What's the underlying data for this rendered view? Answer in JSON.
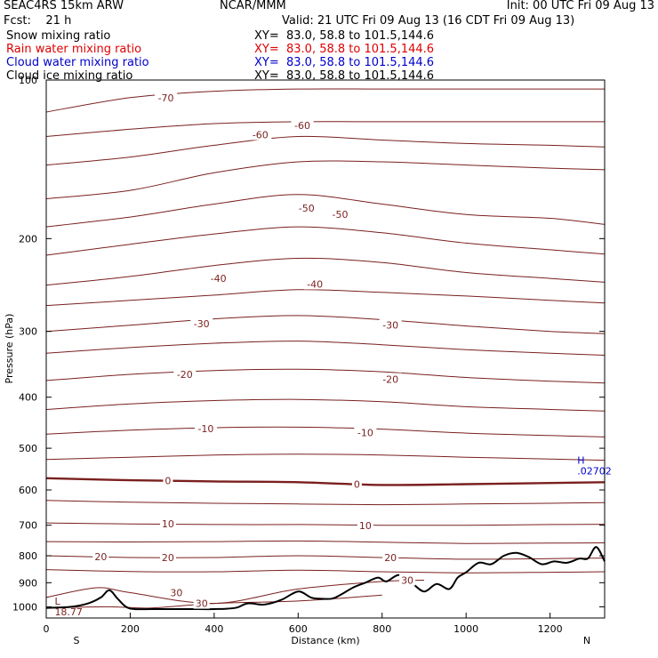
{
  "header": {
    "model": "SEAC4RS 15km ARW",
    "org": "NCAR/MMM",
    "init": "Init: 00 UTC Fri 09 Aug 13",
    "fcst": "Fcst:    21 h",
    "valid": "Valid: 21 UTC Fri 09 Aug 13 (16 CDT Fri 09 Aug 13)"
  },
  "legend": [
    {
      "label": "Snow mixing ratio",
      "xy": "XY=  83.0, 58.8 to 101.5,144.6",
      "color": "#000000"
    },
    {
      "label": "Rain water mixing ratio",
      "xy": "XY=  83.0, 58.8 to 101.5,144.6",
      "color": "#e00000"
    },
    {
      "label": "Cloud water mixing ratio",
      "xy": "XY=  83.0, 58.8 to 101.5,144.6",
      "color": "#0000cc"
    },
    {
      "label": "Cloud ice mixing ratio",
      "xy": "XY=  83.0, 58.8 to 101.5,144.6",
      "color": "#000000"
    }
  ],
  "chart_data": {
    "type": "line",
    "xlabel": "Distance (km)",
    "ylabel": "Pressure (hPa)",
    "xlim": [
      0,
      1330
    ],
    "ylim": [
      1050,
      100
    ],
    "y_scale": "log",
    "x_ticks": [
      0,
      200,
      400,
      600,
      800,
      1000,
      1200
    ],
    "y_ticks": [
      100,
      200,
      300,
      400,
      500,
      600,
      700,
      800,
      900,
      1000
    ],
    "x_end_labels": {
      "left": "S",
      "right": "N"
    },
    "contour_color": "#7a1f1f",
    "terrain_color": "#000000",
    "isotherms": [
      {
        "value": -70,
        "x": [
          0,
          200,
          400,
          600,
          800,
          1000,
          1200,
          1330
        ],
        "p": [
          115,
          108,
          105,
          104,
          104,
          104,
          104,
          104
        ]
      },
      {
        "value": -65,
        "x": [
          0,
          200,
          400,
          600,
          800,
          1000,
          1200,
          1330
        ],
        "p": [
          128,
          124,
          121,
          120,
          120,
          120,
          120,
          120
        ]
      },
      {
        "value": -60,
        "x": [
          0,
          200,
          400,
          600,
          800,
          1000,
          1200,
          1330
        ],
        "p": [
          145,
          140,
          133,
          128,
          130,
          132,
          133,
          134
        ]
      },
      {
        "value": -55,
        "x": [
          0,
          200,
          400,
          600,
          800,
          1000,
          1200,
          1330
        ],
        "p": [
          168,
          162,
          150,
          143,
          143,
          145,
          147,
          148
        ]
      },
      {
        "value": -50,
        "x": [
          0,
          200,
          400,
          600,
          800,
          1000,
          1200,
          1330
        ],
        "p": [
          190,
          182,
          172,
          165,
          172,
          180,
          183,
          188
        ]
      },
      {
        "value": -45,
        "x": [
          0,
          200,
          400,
          600,
          800,
          1000,
          1200,
          1330
        ],
        "p": [
          215,
          205,
          196,
          190,
          195,
          204,
          210,
          214
        ]
      },
      {
        "value": -40,
        "x": [
          0,
          200,
          400,
          600,
          800,
          1000,
          1200,
          1330
        ],
        "p": [
          245,
          236,
          225,
          218,
          222,
          232,
          238,
          242
        ]
      },
      {
        "value": -35,
        "x": [
          0,
          200,
          400,
          600,
          800,
          1000,
          1200,
          1330
        ],
        "p": [
          268,
          262,
          256,
          250,
          253,
          257,
          262,
          265
        ]
      },
      {
        "value": -30,
        "x": [
          0,
          200,
          400,
          600,
          800,
          1000,
          1200,
          1330
        ],
        "p": [
          300,
          292,
          284,
          280,
          285,
          293,
          300,
          303
        ]
      },
      {
        "value": -25,
        "x": [
          0,
          200,
          400,
          600,
          800,
          1000,
          1200,
          1330
        ],
        "p": [
          330,
          322,
          316,
          313,
          318,
          325,
          330,
          333
        ]
      },
      {
        "value": -20,
        "x": [
          0,
          200,
          400,
          600,
          800,
          1000,
          1200,
          1330
        ],
        "p": [
          372,
          362,
          356,
          354,
          358,
          367,
          373,
          376
        ]
      },
      {
        "value": -15,
        "x": [
          0,
          200,
          400,
          600,
          800,
          1000,
          1200,
          1330
        ],
        "p": [
          422,
          412,
          406,
          404,
          408,
          417,
          422,
          425
        ]
      },
      {
        "value": -10,
        "x": [
          0,
          200,
          400,
          600,
          800,
          1000,
          1200,
          1330
        ],
        "p": [
          470,
          462,
          457,
          456,
          460,
          468,
          473,
          476
        ]
      },
      {
        "value": -5,
        "x": [
          0,
          200,
          400,
          600,
          800,
          1000,
          1200,
          1330
        ],
        "p": [
          525,
          520,
          515,
          513,
          515,
          520,
          524,
          527
        ]
      },
      {
        "value": 0,
        "x": [
          0,
          200,
          400,
          600,
          800,
          1000,
          1200,
          1330
        ],
        "p": [
          570,
          575,
          578,
          580,
          587,
          585,
          582,
          580
        ]
      },
      {
        "value": 5,
        "x": [
          0,
          200,
          400,
          600,
          800,
          1000,
          1200,
          1330
        ],
        "p": [
          628,
          633,
          636,
          638,
          640,
          638,
          636,
          634
        ]
      },
      {
        "value": 10,
        "x": [
          0,
          200,
          400,
          600,
          800,
          1000,
          1200,
          1330
        ],
        "p": [
          693,
          696,
          698,
          698,
          700,
          700,
          698,
          697
        ]
      },
      {
        "value": 15,
        "x": [
          0,
          200,
          400,
          600,
          800,
          1000,
          1200,
          1330
        ],
        "p": [
          752,
          753,
          752,
          750,
          754,
          758,
          757,
          756
        ]
      },
      {
        "value": 20,
        "x": [
          0,
          200,
          400,
          600,
          800,
          1000,
          1200,
          1330
        ],
        "p": [
          800,
          806,
          806,
          800,
          806,
          812,
          810,
          808
        ]
      },
      {
        "value": 25,
        "x": [
          0,
          200,
          400,
          600,
          800,
          1000,
          1200,
          1330
        ],
        "p": [
          850,
          857,
          858,
          852,
          858,
          862,
          860,
          858
        ]
      },
      {
        "value": 30,
        "x": [
          0,
          120,
          200,
          400,
          600,
          800,
          900
        ],
        "p": [
          960,
          920,
          940,
          985,
          925,
          895,
          890
        ]
      },
      {
        "value": 35,
        "x": [
          0,
          150,
          250,
          400,
          600,
          800
        ],
        "p": [
          1005,
          1000,
          1005,
          985,
          975,
          950
        ]
      }
    ],
    "terrain": {
      "x": [
        0,
        60,
        100,
        130,
        150,
        170,
        190,
        210,
        250,
        300,
        350,
        400,
        450,
        480,
        520,
        560,
        600,
        630,
        650,
        680,
        700,
        730,
        760,
        790,
        810,
        840,
        870,
        900,
        930,
        960,
        980,
        1000,
        1030,
        1060,
        1090,
        1120,
        1150,
        1180,
        1210,
        1240,
        1270,
        1290,
        1310,
        1330
      ],
      "p": [
        1005,
        1000,
        985,
        960,
        930,
        965,
        1000,
        1010,
        1010,
        1010,
        1010,
        1010,
        1005,
        985,
        990,
        970,
        935,
        960,
        965,
        965,
        950,
        920,
        900,
        880,
        895,
        870,
        900,
        935,
        905,
        925,
        880,
        860,
        825,
        830,
        800,
        790,
        805,
        830,
        820,
        825,
        810,
        810,
        770,
        820
      ]
    },
    "contour_labels": [
      {
        "text": "-70",
        "x": 285,
        "p": 108
      },
      {
        "text": "-60",
        "x": 510,
        "p": 127
      },
      {
        "text": "-60",
        "x": 610,
        "p": 122
      },
      {
        "text": "-50",
        "x": 620,
        "p": 175
      },
      {
        "text": "-50",
        "x": 700,
        "p": 180
      },
      {
        "text": "-40",
        "x": 410,
        "p": 238
      },
      {
        "text": "-40",
        "x": 640,
        "p": 244
      },
      {
        "text": "-30",
        "x": 370,
        "p": 290
      },
      {
        "text": "-30",
        "x": 820,
        "p": 292
      },
      {
        "text": "-20",
        "x": 330,
        "p": 362
      },
      {
        "text": "-20",
        "x": 820,
        "p": 370
      },
      {
        "text": "-10",
        "x": 380,
        "p": 459
      },
      {
        "text": "-10",
        "x": 760,
        "p": 467
      },
      {
        "text": "0",
        "x": 290,
        "p": 576
      },
      {
        "text": "0",
        "x": 740,
        "p": 585
      },
      {
        "text": "10",
        "x": 290,
        "p": 696
      },
      {
        "text": "10",
        "x": 760,
        "p": 701
      },
      {
        "text": "20",
        "x": 130,
        "p": 803
      },
      {
        "text": "20",
        "x": 290,
        "p": 806
      },
      {
        "text": "20",
        "x": 820,
        "p": 806
      },
      {
        "text": "30",
        "x": 310,
        "p": 940
      },
      {
        "text": "30",
        "x": 370,
        "p": 985
      },
      {
        "text": "30",
        "x": 860,
        "p": 890
      }
    ],
    "extrema": [
      {
        "kind": "L",
        "label": "L",
        "value": "18.77",
        "x": 20,
        "p": 990
      },
      {
        "kind": "H",
        "label": "H",
        "value": ".02702",
        "x": 1265,
        "p": 535
      }
    ]
  }
}
